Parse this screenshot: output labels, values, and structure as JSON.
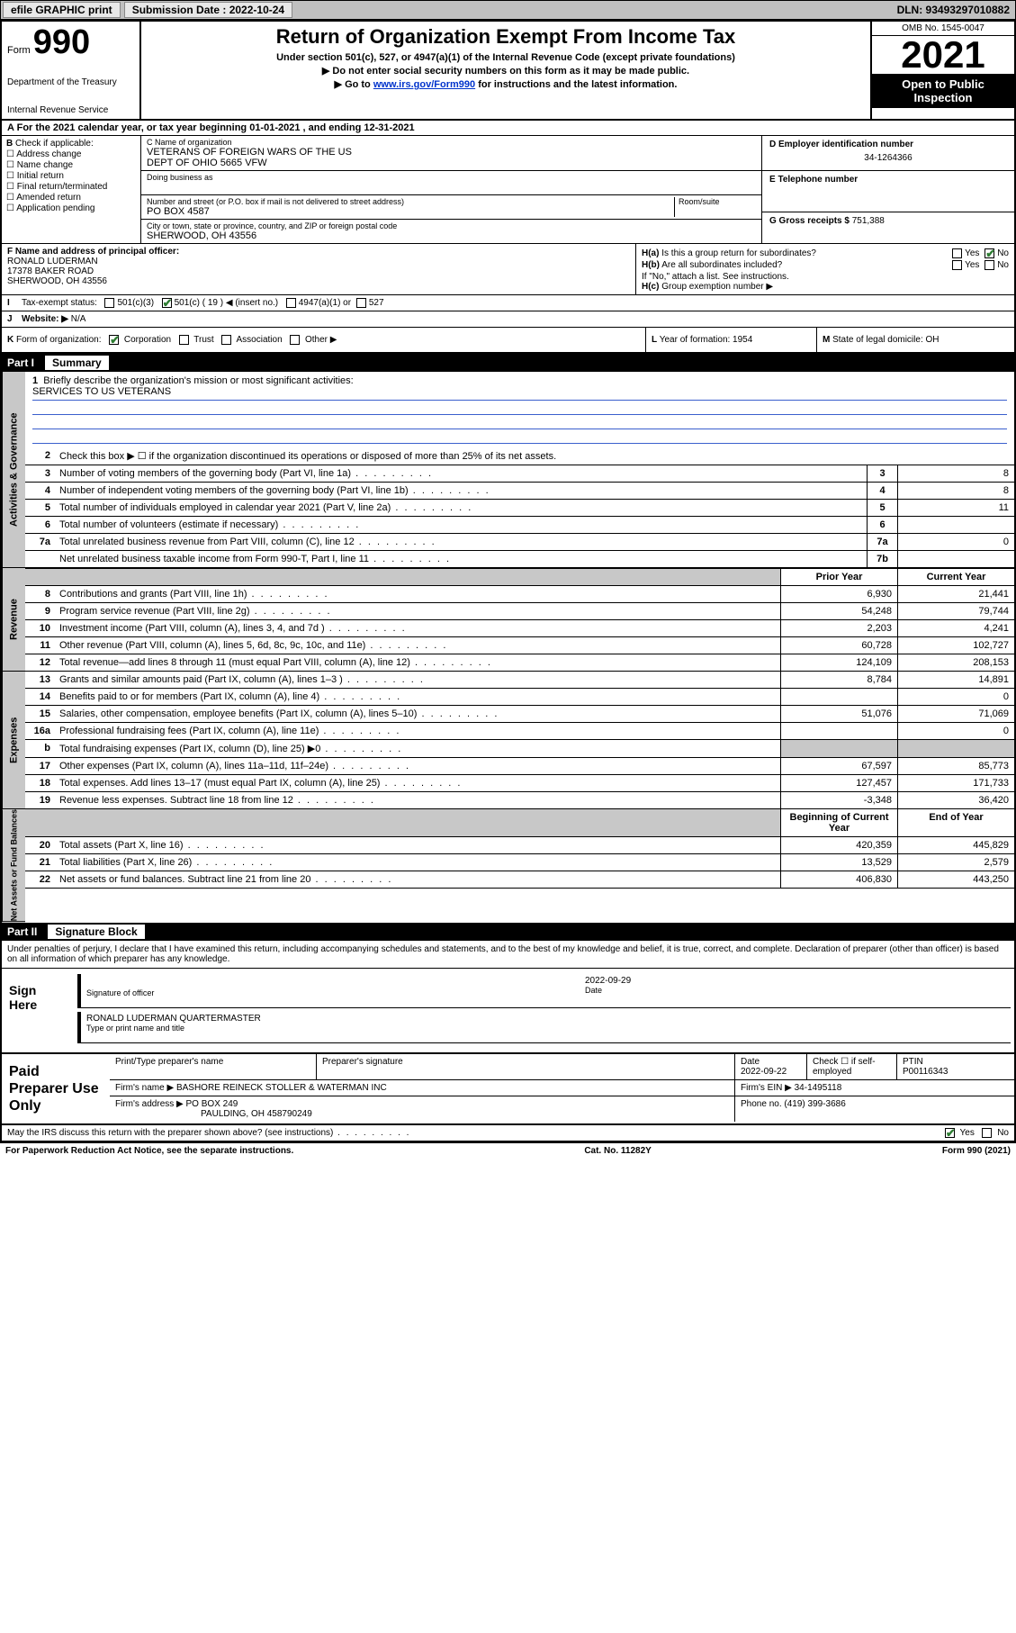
{
  "topbar": {
    "efile": "efile GRAPHIC print",
    "submission_label": "Submission Date : 2022-10-24",
    "dln": "DLN: 93493297010882"
  },
  "header": {
    "form_word": "Form",
    "form_number": "990",
    "dept": "Department of the Treasury",
    "irs": "Internal Revenue Service",
    "title": "Return of Organization Exempt From Income Tax",
    "sub1": "Under section 501(c), 527, or 4947(a)(1) of the Internal Revenue Code (except private foundations)",
    "sub2": "Do not enter social security numbers on this form as it may be made public.",
    "sub3_pre": "Go to ",
    "sub3_link": "www.irs.gov/Form990",
    "sub3_post": " for instructions and the latest information.",
    "omb": "OMB No. 1545-0047",
    "year": "2021",
    "open": "Open to Public Inspection"
  },
  "rowA": "For the 2021 calendar year, or tax year beginning 01-01-2021   , and ending 12-31-2021",
  "boxB": {
    "label": "Check if applicable:",
    "opts": [
      "Address change",
      "Name change",
      "Initial return",
      "Final return/terminated",
      "Amended return",
      "Application pending"
    ],
    "letter": "B"
  },
  "boxC": {
    "name_lbl": "C Name of organization",
    "name1": "VETERANS OF FOREIGN WARS OF THE US",
    "name2": "DEPT OF OHIO 5665 VFW",
    "dba_lbl": "Doing business as",
    "addr_lbl": "Number and street (or P.O. box if mail is not delivered to street address)",
    "room_lbl": "Room/suite",
    "addr": "PO BOX 4587",
    "city_lbl": "City or town, state or province, country, and ZIP or foreign postal code",
    "city": "SHERWOOD, OH  43556"
  },
  "boxD": {
    "lbl": "D Employer identification number",
    "val": "34-1264366"
  },
  "boxE": {
    "lbl": "E Telephone number",
    "val": ""
  },
  "boxG": {
    "lbl": "G Gross receipts $",
    "val": "751,388"
  },
  "boxF": {
    "lbl": "F  Name and address of principal officer:",
    "l1": "RONALD LUDERMAN",
    "l2": "17378 BAKER ROAD",
    "l3": "SHERWOOD, OH  43556"
  },
  "boxH": {
    "a": "Is this a group return for subordinates?",
    "a_yes": "Yes",
    "a_no": "No",
    "b": "Are all subordinates included?",
    "b_note": "If \"No,\" attach a list. See instructions.",
    "c": "Group exemption number ▶"
  },
  "rowI": {
    "lbl": "Tax-exempt status:",
    "o1": "501(c)(3)",
    "o2": "501(c) ( 19 ) ◀ (insert no.)",
    "o3": "4947(a)(1) or",
    "o4": "527"
  },
  "rowJ": {
    "lbl": "Website: ▶",
    "val": "N/A"
  },
  "rowK": {
    "lbl": "Form of organization:",
    "opts": [
      "Corporation",
      "Trust",
      "Association",
      "Other ▶"
    ],
    "L": "Year of formation: 1954",
    "M": "State of legal domicile: OH"
  },
  "part1": {
    "num": "Part I",
    "title": "Summary"
  },
  "mission": {
    "q": "Briefly describe the organization's mission or most significant activities:",
    "text": "SERVICES TO US VETERANS"
  },
  "governance_label": "Activities & Governance",
  "rows_gov": [
    {
      "n": "2",
      "d": "Check this box ▶ ☐  if the organization discontinued its operations or disposed of more than 25% of its net assets.",
      "box": "",
      "py": "",
      "cy": ""
    },
    {
      "n": "3",
      "d": "Number of voting members of the governing body (Part VI, line 1a)",
      "box": "3",
      "py": "",
      "cy": "8"
    },
    {
      "n": "4",
      "d": "Number of independent voting members of the governing body (Part VI, line 1b)",
      "box": "4",
      "py": "",
      "cy": "8"
    },
    {
      "n": "5",
      "d": "Total number of individuals employed in calendar year 2021 (Part V, line 2a)",
      "box": "5",
      "py": "",
      "cy": "11"
    },
    {
      "n": "6",
      "d": "Total number of volunteers (estimate if necessary)",
      "box": "6",
      "py": "",
      "cy": ""
    },
    {
      "n": "7a",
      "d": "Total unrelated business revenue from Part VIII, column (C), line 12",
      "box": "7a",
      "py": "",
      "cy": "0"
    },
    {
      "n": "",
      "d": "Net unrelated business taxable income from Form 990-T, Part I, line 11",
      "box": "7b",
      "py": "",
      "cy": ""
    }
  ],
  "col_hdrs": {
    "py": "Prior Year",
    "cy": "Current Year"
  },
  "revenue_label": "Revenue",
  "rows_rev": [
    {
      "n": "8",
      "d": "Contributions and grants (Part VIII, line 1h)",
      "py": "6,930",
      "cy": "21,441"
    },
    {
      "n": "9",
      "d": "Program service revenue (Part VIII, line 2g)",
      "py": "54,248",
      "cy": "79,744"
    },
    {
      "n": "10",
      "d": "Investment income (Part VIII, column (A), lines 3, 4, and 7d )",
      "py": "2,203",
      "cy": "4,241"
    },
    {
      "n": "11",
      "d": "Other revenue (Part VIII, column (A), lines 5, 6d, 8c, 9c, 10c, and 11e)",
      "py": "60,728",
      "cy": "102,727"
    },
    {
      "n": "12",
      "d": "Total revenue—add lines 8 through 11 (must equal Part VIII, column (A), line 12)",
      "py": "124,109",
      "cy": "208,153"
    }
  ],
  "expenses_label": "Expenses",
  "rows_exp": [
    {
      "n": "13",
      "d": "Grants and similar amounts paid (Part IX, column (A), lines 1–3 )",
      "py": "8,784",
      "cy": "14,891"
    },
    {
      "n": "14",
      "d": "Benefits paid to or for members (Part IX, column (A), line 4)",
      "py": "",
      "cy": "0"
    },
    {
      "n": "15",
      "d": "Salaries, other compensation, employee benefits (Part IX, column (A), lines 5–10)",
      "py": "51,076",
      "cy": "71,069"
    },
    {
      "n": "16a",
      "d": "Professional fundraising fees (Part IX, column (A), line 11e)",
      "py": "",
      "cy": "0"
    },
    {
      "n": "b",
      "d": "Total fundraising expenses (Part IX, column (D), line 25) ▶0",
      "py": "shade",
      "cy": "shade"
    },
    {
      "n": "17",
      "d": "Other expenses (Part IX, column (A), lines 11a–11d, 11f–24e)",
      "py": "67,597",
      "cy": "85,773"
    },
    {
      "n": "18",
      "d": "Total expenses. Add lines 13–17 (must equal Part IX, column (A), line 25)",
      "py": "127,457",
      "cy": "171,733"
    },
    {
      "n": "19",
      "d": "Revenue less expenses. Subtract line 18 from line 12",
      "py": "-3,348",
      "cy": "36,420"
    }
  ],
  "net_label": "Net Assets or Fund Balances",
  "col_hdrs2": {
    "py": "Beginning of Current Year",
    "cy": "End of Year"
  },
  "rows_net": [
    {
      "n": "20",
      "d": "Total assets (Part X, line 16)",
      "py": "420,359",
      "cy": "445,829"
    },
    {
      "n": "21",
      "d": "Total liabilities (Part X, line 26)",
      "py": "13,529",
      "cy": "2,579"
    },
    {
      "n": "22",
      "d": "Net assets or fund balances. Subtract line 21 from line 20",
      "py": "406,830",
      "cy": "443,250"
    }
  ],
  "part2": {
    "num": "Part II",
    "title": "Signature Block"
  },
  "sig_intro": "Under penalties of perjury, I declare that I have examined this return, including accompanying schedules and statements, and to the best of my knowledge and belief, it is true, correct, and complete. Declaration of preparer (other than officer) is based on all information of which preparer has any knowledge.",
  "sign": {
    "lbl": "Sign Here",
    "sig_lbl": "Signature of officer",
    "date_lbl": "Date",
    "date": "2022-09-29",
    "name": "RONALD LUDERMAN  QUARTERMASTER",
    "name_lbl": "Type or print name and title"
  },
  "paid": {
    "lbl": "Paid Preparer Use Only",
    "h1": "Print/Type preparer's name",
    "h2": "Preparer's signature",
    "h3": "Date",
    "h3v": "2022-09-22",
    "h4": "Check ☐ if self-employed",
    "h5": "PTIN",
    "h5v": "P00116343",
    "firm_name_lbl": "Firm's name    ▶",
    "firm_name": "BASHORE REINECK STOLLER & WATERMAN INC",
    "firm_ein_lbl": "Firm's EIN ▶",
    "firm_ein": "34-1495118",
    "firm_addr_lbl": "Firm's address ▶",
    "firm_addr1": "PO BOX 249",
    "firm_addr2": "PAULDING, OH  458790249",
    "phone_lbl": "Phone no.",
    "phone": "(419) 399-3686"
  },
  "footer": {
    "q": "May the IRS discuss this return with the preparer shown above? (see instructions)",
    "yes": "Yes",
    "no": "No",
    "pra": "For Paperwork Reduction Act Notice, see the separate instructions.",
    "cat": "Cat. No. 11282Y",
    "form": "Form 990 (2021)"
  },
  "colors": {
    "topbar_bg": "#c0c0c0",
    "check_green": "#2e7d32",
    "link_blue": "#0033cc",
    "shade": "#c8c8c8"
  }
}
